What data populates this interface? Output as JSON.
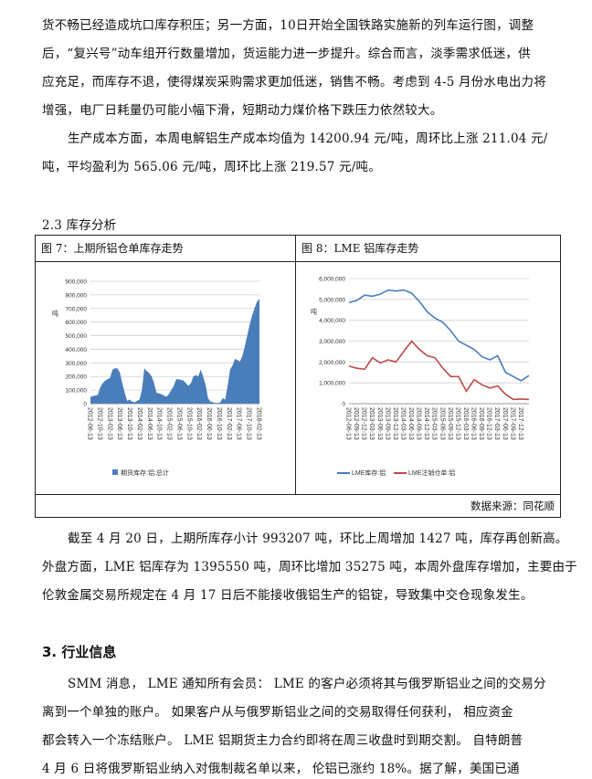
{
  "paragraphs_top": [
    "货不畅已经造成坑口库存积压；另一方面，10日开始全国铁路实施新的列车运行图，调整",
    "后，“复兴号”动车组开行数量增加，货运能力进一步提升。综合而言，淡季需求低迷，供",
    "应充足，而库存不退，使得煤炭采购需求更加低迷，销售不畅。考虑到 4-5 月份水电出力将",
    "增强，电厂日耗量仍可能小幅下滑，短期动力煤价格下跌压力依然较大。",
    "生产成本方面，本周电解铝生产成本均值为 14200.94 元/吨，周环比上涨 211.04 元/",
    "吨，平均盈利为 565.06 元/吨，周环比上涨 219.57 元/吨。"
  ],
  "section_23": "2.3 库存分析",
  "fig7_title": "图 7：上期所铝仓单库存走势",
  "fig8_title": "图 8：LME 铝库存走势",
  "source": "数据来源：同花顺",
  "paragraphs_mid": [
    "截至 4 月 20 日，上期所库存小计 993207 吨，环比上周增加 1427 吨，库存再创新高。",
    "外盘方面，LME 铝库存为 1395550 吨，周环比增加 35275 吨，本周外盘库存增加，主要由于",
    "伦敦金属交易所规定在 4 月 17 日后不能接收俄铝生产的铝锭，导致集中交仓现象发生。"
  ],
  "section_3": "3. 行业信息",
  "paragraphs_bottom": [
    "SMM 消息， LME 通知所有会员： LME 的客户必须将其与俄罗斯铝业之间的交易分",
    "离到一个单独的账户。 如果客户从与俄罗斯铝业之间的交易取得任何获利， 相应资金",
    "都会转入一个冻结账户。 LME 铝期货主力合约即将在周三收盘时到期交割。 自特朗普",
    "4 月 6 日将俄罗斯铝业纳入对俄制裁名单以来， 伦铝已涨约 18%。据了解，美国已通"
  ],
  "chart_data": [
    {
      "type": "area",
      "ylabel": "吨",
      "ylim": [
        0,
        900000
      ],
      "yticks": [
        "0",
        "100,000",
        "200,000",
        "300,000",
        "400,000",
        "500,000",
        "600,000",
        "700,000",
        "800,000",
        "900,000"
      ],
      "xtick_labels": [
        "2012-06-13",
        "2012-10-13",
        "2013-02-13",
        "2013-06-13",
        "2013-10-13",
        "2014-02-13",
        "2014-06-13",
        "2014-10-13",
        "2015-02-13",
        "2015-06-13",
        "2015-10-13",
        "2016-02-13",
        "2016-06-13",
        "2016-10-13",
        "2017-02-13",
        "2017-06-13",
        "2017-10-13",
        "2018-02-13"
      ],
      "grid": true,
      "legend": "bottom",
      "color": "#4a7ebb",
      "series": [
        {
          "name": "期货库存:铝:总计",
          "x_start": "2012-06",
          "x_step_months": 1,
          "values": [
            50000,
            55000,
            60000,
            65000,
            120000,
            150000,
            170000,
            180000,
            190000,
            250000,
            260000,
            260000,
            230000,
            150000,
            80000,
            20000,
            30000,
            15000,
            10000,
            20000,
            30000,
            100000,
            260000,
            240000,
            225000,
            200000,
            150000,
            80000,
            75000,
            70000,
            60000,
            50000,
            70000,
            100000,
            130000,
            180000,
            180000,
            175000,
            170000,
            150000,
            130000,
            150000,
            200000,
            210000,
            200000,
            250000,
            200000,
            140000,
            40000,
            15000,
            10000,
            5000,
            5000,
            8000,
            40000,
            30000,
            130000,
            250000,
            280000,
            330000,
            320000,
            310000,
            350000,
            420000,
            500000,
            580000,
            650000,
            700000,
            750000,
            770000
          ]
        }
      ]
    },
    {
      "type": "line",
      "ylabel": "吨",
      "ylim": [
        0,
        6000000
      ],
      "yticks": [
        "0",
        "1,000,000",
        "2,000,000",
        "3,000,000",
        "4,000,000",
        "5,000,000",
        "6,000,000"
      ],
      "xtick_labels": [
        "2012-06-13",
        "2012-09-13",
        "2012-12-13",
        "2013-03-13",
        "2013-06-13",
        "2013-09-13",
        "2013-12-13",
        "2014-03-13",
        "2014-06-13",
        "2014-09-13",
        "2014-12-13",
        "2015-03-13",
        "2015-06-13",
        "2015-09-13",
        "2015-12-13",
        "2016-03-13",
        "2016-06-13",
        "2016-09-13",
        "2016-12-13",
        "2017-03-13",
        "2017-06-13",
        "2017-09-13",
        "2017-12-13"
      ],
      "grid": true,
      "legend": "bottom",
      "series": [
        {
          "name": "LME库存:铝",
          "color": "#4a7ebb",
          "values": [
            4850000,
            4950000,
            5200000,
            5150000,
            5250000,
            5450000,
            5400000,
            5450000,
            5300000,
            4900000,
            4400000,
            4100000,
            3900000,
            3500000,
            3000000,
            2800000,
            2600000,
            2250000,
            2100000,
            2300000,
            1500000,
            1300000,
            1100000,
            1350000
          ]
        },
        {
          "name": "LME注销仓单:铝",
          "color": "#be4b48",
          "values": [
            1800000,
            1700000,
            1650000,
            2200000,
            1950000,
            2100000,
            2000000,
            2500000,
            3000000,
            2600000,
            2300000,
            2200000,
            1700000,
            1300000,
            1300000,
            600000,
            1150000,
            900000,
            750000,
            850000,
            450000,
            200000,
            220000,
            200000
          ]
        }
      ]
    }
  ]
}
